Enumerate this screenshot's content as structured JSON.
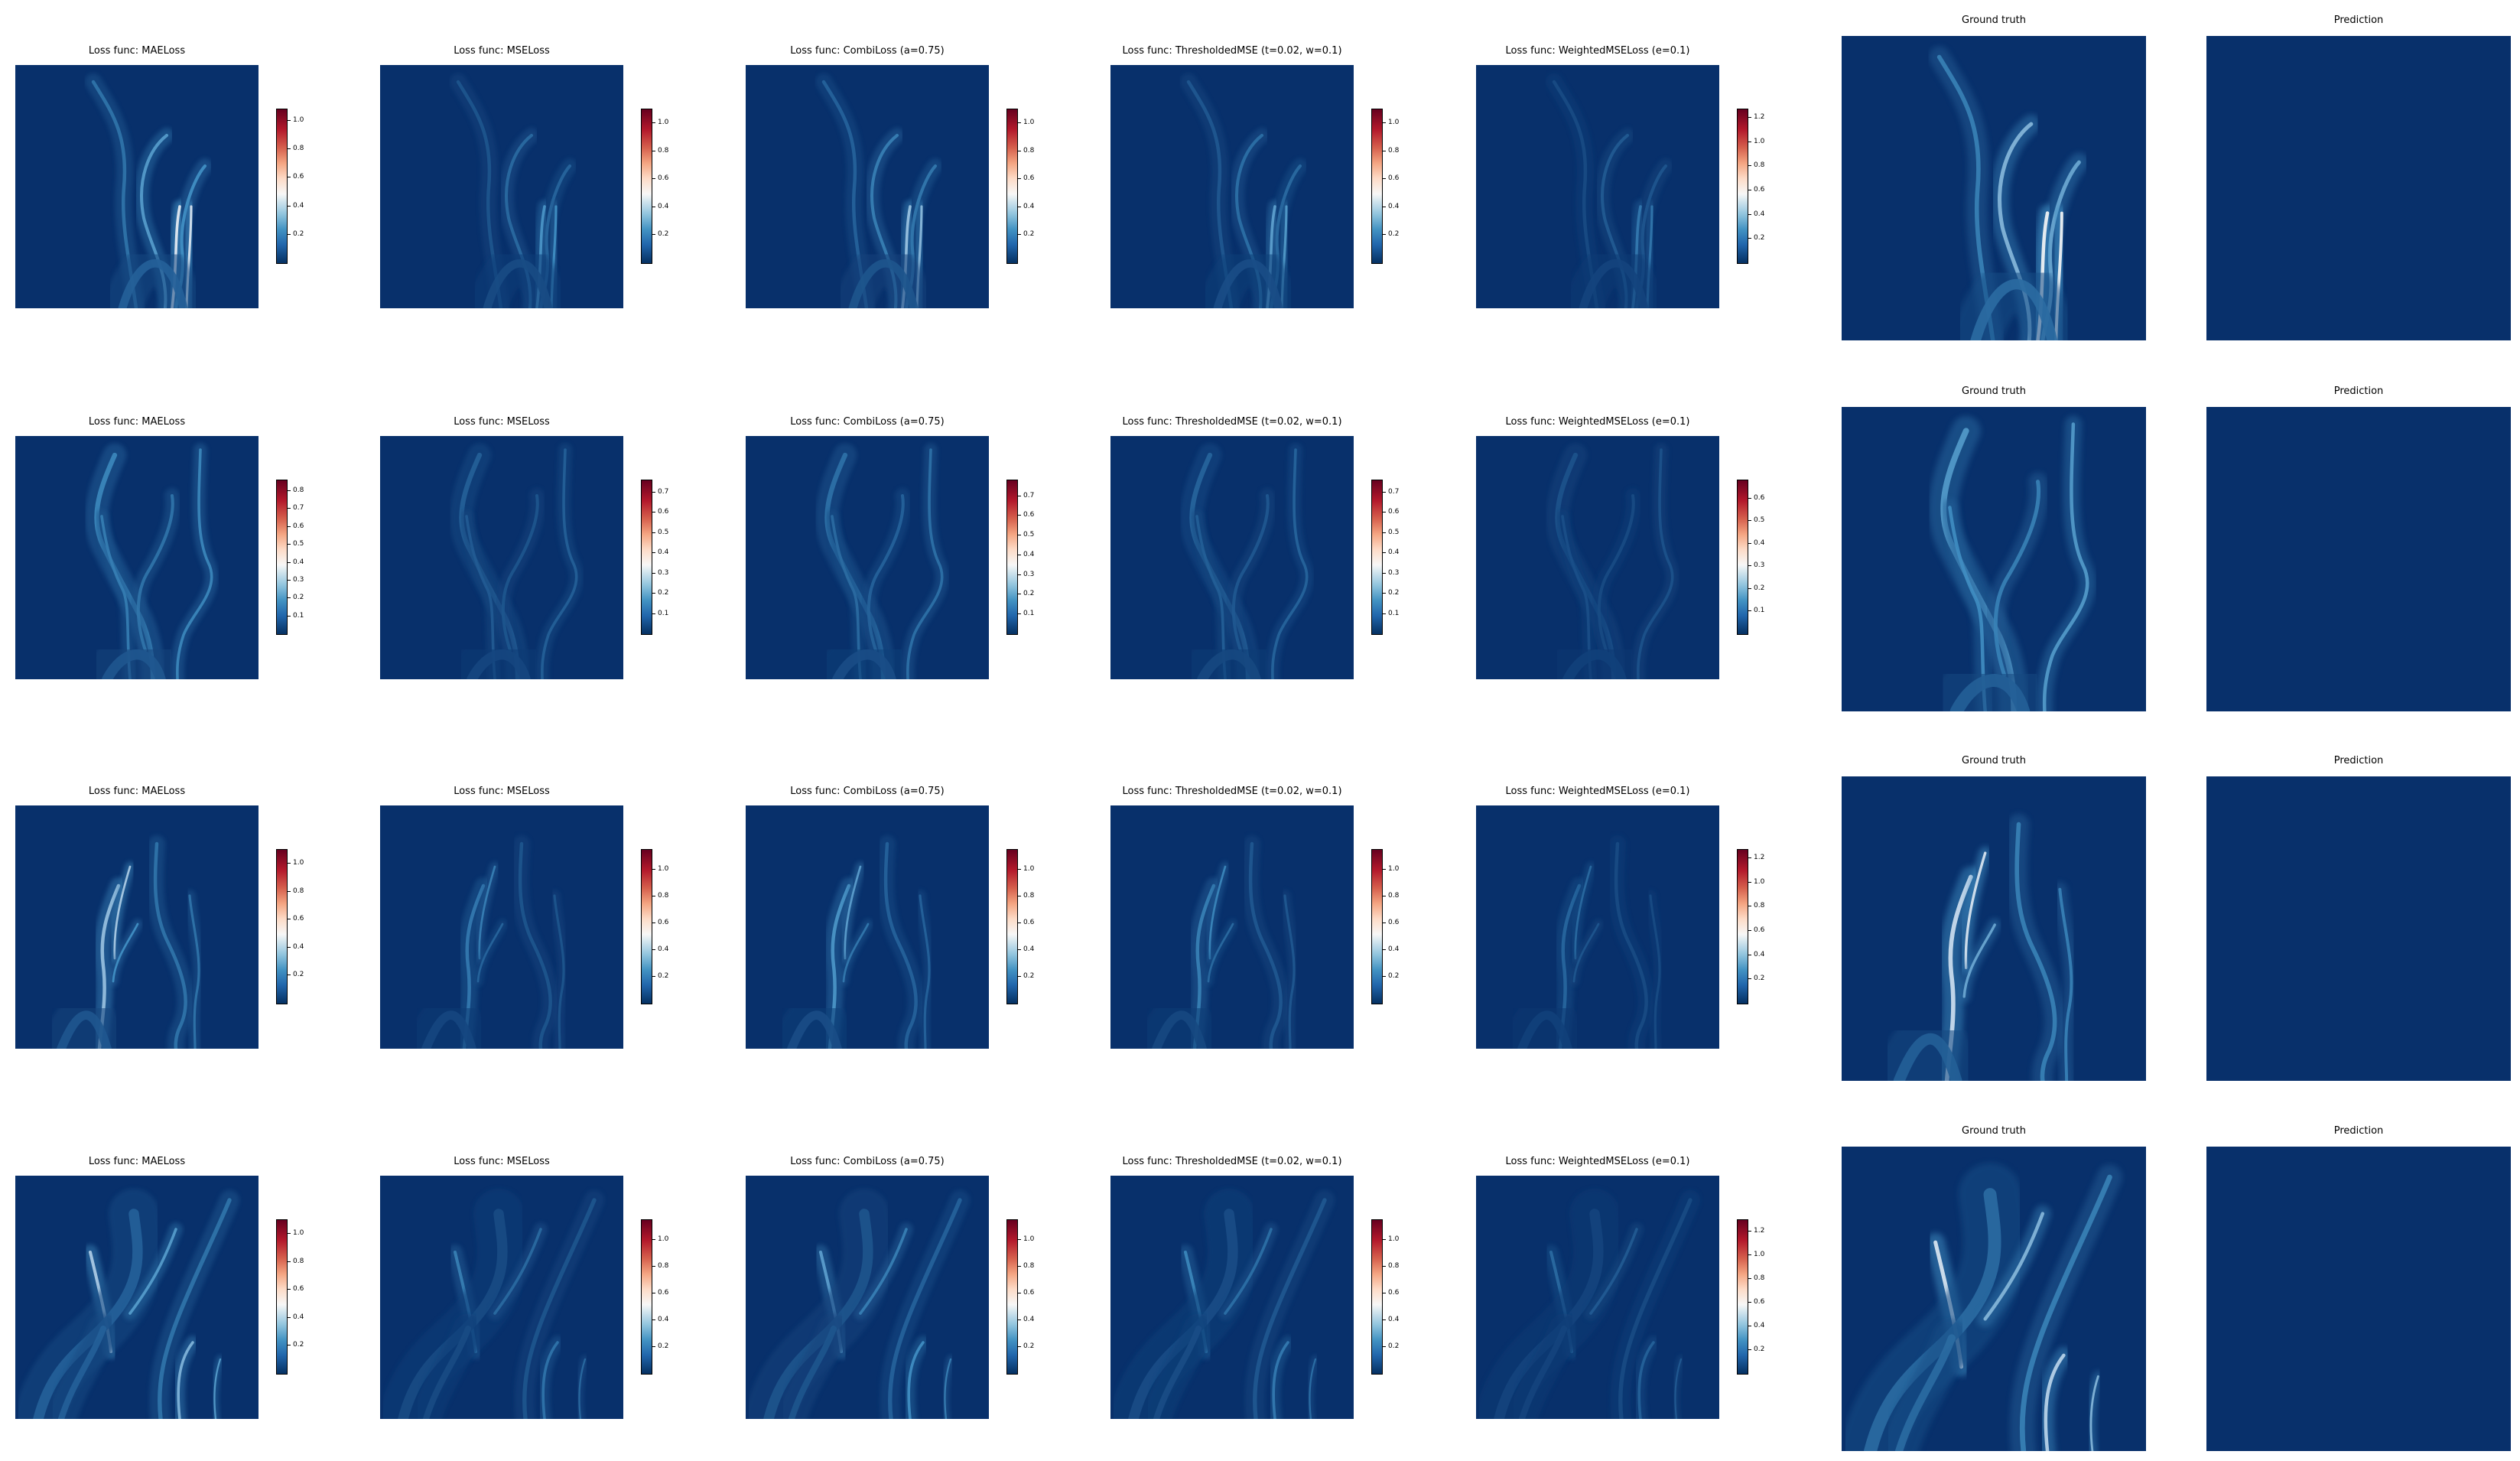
{
  "colors": {
    "background": "#08306b",
    "colorbar_low": "#053061",
    "colorbar_mid": "#f7f7f7",
    "colorbar_high": "#67001f"
  },
  "rows": [
    {
      "model_panels": [
        {
          "title": "Loss func: MAELoss",
          "ticks": [
            "1.0",
            "0.8",
            "0.6",
            "0.4",
            "0.2"
          ],
          "vmax": 1.08
        },
        {
          "title": "Loss func: MSELoss",
          "ticks": [
            "1.0",
            "0.8",
            "0.6",
            "0.4",
            "0.2"
          ],
          "vmax": 1.1
        },
        {
          "title": "Loss func: CombiLoss (a=0.75)",
          "ticks": [
            "1.0",
            "0.8",
            "0.6",
            "0.4",
            "0.2"
          ],
          "vmax": 1.1
        },
        {
          "title": "Loss func: ThresholdedMSE (t=0.02, w=0.1)",
          "ticks": [
            "1.0",
            "0.8",
            "0.6",
            "0.4",
            "0.2"
          ],
          "vmax": 1.1
        },
        {
          "title": "Loss func: WeightedMSELoss (e=0.1)",
          "ticks": [
            "1.2",
            "1.0",
            "0.8",
            "0.6",
            "0.4",
            "0.2"
          ],
          "vmax": 1.27
        }
      ],
      "gt_title": "Ground truth",
      "pred_title": "Prediction"
    },
    {
      "model_panels": [
        {
          "title": "Loss func: MAELoss",
          "ticks": [
            "0.8",
            "0.7",
            "0.6",
            "0.5",
            "0.4",
            "0.3",
            "0.2",
            "0.1"
          ],
          "vmax": 0.86
        },
        {
          "title": "Loss func: MSELoss",
          "ticks": [
            "0.7",
            "0.6",
            "0.5",
            "0.4",
            "0.3",
            "0.2",
            "0.1"
          ],
          "vmax": 0.76
        },
        {
          "title": "Loss func: CombiLoss (a=0.75)",
          "ticks": [
            "0.7",
            "0.6",
            "0.5",
            "0.4",
            "0.3",
            "0.2",
            "0.1"
          ],
          "vmax": 0.78
        },
        {
          "title": "Loss func: ThresholdedMSE (t=0.02, w=0.1)",
          "ticks": [
            "0.7",
            "0.6",
            "0.5",
            "0.4",
            "0.3",
            "0.2",
            "0.1"
          ],
          "vmax": 0.76
        },
        {
          "title": "Loss func: WeightedMSELoss (e=0.1)",
          "ticks": [
            "0.6",
            "0.5",
            "0.4",
            "0.3",
            "0.2",
            "0.1"
          ],
          "vmax": 0.68
        }
      ],
      "gt_title": "Ground truth",
      "pred_title": "Prediction"
    },
    {
      "model_panels": [
        {
          "title": "Loss func: MAELoss",
          "ticks": [
            "1.0",
            "0.8",
            "0.6",
            "0.4",
            "0.2"
          ],
          "vmax": 1.1
        },
        {
          "title": "Loss func: MSELoss",
          "ticks": [
            "1.0",
            "0.8",
            "0.6",
            "0.4",
            "0.2"
          ],
          "vmax": 1.15
        },
        {
          "title": "Loss func: CombiLoss (a=0.75)",
          "ticks": [
            "1.0",
            "0.8",
            "0.6",
            "0.4",
            "0.2"
          ],
          "vmax": 1.15
        },
        {
          "title": "Loss func: ThresholdedMSE (t=0.02, w=0.1)",
          "ticks": [
            "1.0",
            "0.8",
            "0.6",
            "0.4",
            "0.2"
          ],
          "vmax": 1.15
        },
        {
          "title": "Loss func: WeightedMSELoss (e=0.1)",
          "ticks": [
            "1.2",
            "1.0",
            "0.8",
            "0.6",
            "0.4",
            "0.2"
          ],
          "vmax": 1.27
        }
      ],
      "gt_title": "Ground truth",
      "pred_title": "Prediction"
    },
    {
      "model_panels": [
        {
          "title": "Loss func: MAELoss",
          "ticks": [
            "1.0",
            "0.8",
            "0.6",
            "0.4",
            "0.2"
          ],
          "vmax": 1.1
        },
        {
          "title": "Loss func: MSELoss",
          "ticks": [
            "1.0",
            "0.8",
            "0.6",
            "0.4",
            "0.2"
          ],
          "vmax": 1.15
        },
        {
          "title": "Loss func: CombiLoss (a=0.75)",
          "ticks": [
            "1.0",
            "0.8",
            "0.6",
            "0.4",
            "0.2"
          ],
          "vmax": 1.15
        },
        {
          "title": "Loss func: ThresholdedMSE (t=0.02, w=0.1)",
          "ticks": [
            "1.0",
            "0.8",
            "0.6",
            "0.4",
            "0.2"
          ],
          "vmax": 1.15
        },
        {
          "title": "Loss func: WeightedMSELoss (e=0.1)",
          "ticks": [
            "1.2",
            "1.0",
            "0.8",
            "0.6",
            "0.4",
            "0.2"
          ],
          "vmax": 1.3
        }
      ],
      "gt_title": "Ground truth",
      "pred_title": "Prediction"
    }
  ],
  "chart_data": {
    "type": "heatmap",
    "colormap": "RdBu_r",
    "rows": 4,
    "columns": [
      "Loss func: MAELoss",
      "Loss func: MSELoss",
      "Loss func: CombiLoss (a=0.75)",
      "Loss func: ThresholdedMSE (t=0.02, w=0.1)",
      "Loss func: WeightedMSELoss (e=0.1)",
      "Ground truth",
      "Prediction"
    ],
    "axes_visible": false,
    "colorbar_vmin": 0.0
  }
}
